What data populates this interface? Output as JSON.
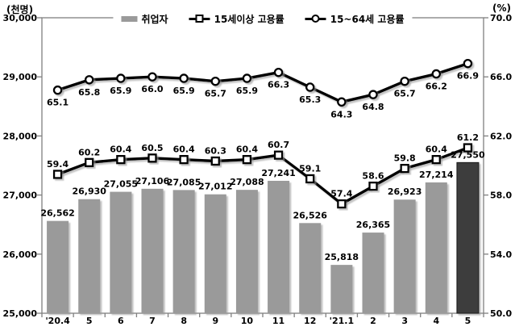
{
  "legend": {
    "items": [
      {
        "label": "취업자",
        "swatch": "gray-bar"
      },
      {
        "label": "15세이상 고용률",
        "swatch": "line-square-marker"
      },
      {
        "label": "15~64세 고용률",
        "swatch": "line-circle-marker"
      }
    ]
  },
  "chart_data": {
    "type": "combo-bar-line",
    "title": "",
    "grid": false,
    "legend_position": "top",
    "categories": [
      "'20.4",
      "5",
      "6",
      "7",
      "8",
      "9",
      "10",
      "11",
      "12",
      "'21.1",
      "2",
      "3",
      "4",
      "5"
    ],
    "series": [
      {
        "name": "취업자",
        "type": "bar",
        "axis": "left",
        "values": [
          26562,
          26930,
          27055,
          27106,
          27085,
          27012,
          27088,
          27241,
          26526,
          25818,
          26365,
          26923,
          27214,
          27550
        ],
        "labels": [
          "26,562",
          "26,930",
          "27,055",
          "27,106",
          "27,085",
          "27,012",
          "27,088",
          "27,241",
          "26,526",
          "25,818",
          "26,365",
          "26,923",
          "27,214",
          "27,550"
        ],
        "highlight_last_index": 13
      },
      {
        "name": "15세이상 고용률",
        "type": "line",
        "marker": "square",
        "axis": "right",
        "values": [
          59.4,
          60.2,
          60.4,
          60.5,
          60.4,
          60.3,
          60.4,
          60.7,
          59.1,
          57.4,
          58.6,
          59.8,
          60.4,
          61.2
        ],
        "label_position": "above"
      },
      {
        "name": "15~64세 고용률",
        "type": "line",
        "marker": "circle",
        "axis": "right",
        "values": [
          65.1,
          65.8,
          65.9,
          66.0,
          65.9,
          65.7,
          65.9,
          66.3,
          65.3,
          64.3,
          64.8,
          65.7,
          66.2,
          66.9
        ],
        "label_position": "below"
      }
    ],
    "left_axis": {
      "unit_label": "(천명)",
      "min": 25000,
      "max": 30000,
      "tick_step": 1000,
      "tick_labels": [
        "30,000",
        "29,000",
        "28,000",
        "27,000",
        "26,000",
        "25,000"
      ]
    },
    "right_axis": {
      "unit_label": "(%)",
      "min": 50.0,
      "max": 70.0,
      "tick_step": 4.0,
      "tick_labels": [
        "70.0",
        "66.0",
        "62.0",
        "58.0",
        "54.0",
        "50.0"
      ]
    }
  },
  "colors": {
    "bar": "#9a9a9a",
    "bar_highlight": "#3d3d3d",
    "line": "#000000",
    "marker_fill": "#ffffff",
    "axis": "#7f7f7f",
    "text": "#000000",
    "background": "#ffffff",
    "shadow": "#999999"
  }
}
